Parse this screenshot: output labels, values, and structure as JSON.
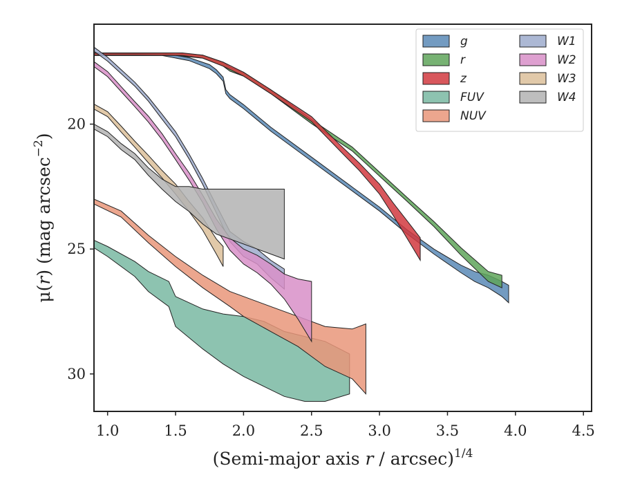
{
  "chart_data": {
    "type": "area",
    "xlabel_main": "(Semi-major axis ",
    "xlabel_var": "r",
    "xlabel_tail": " / arcsec)",
    "xlabel_sup": "1/4",
    "ylabel_main": "μ(",
    "ylabel_var": "r",
    "ylabel_tail": ") (mag arcsec",
    "ylabel_sup": "−2",
    "ylabel_end": ")",
    "xlim": [
      0.9,
      4.56
    ],
    "ylim": [
      31.5,
      16.0
    ],
    "y_inverted": true,
    "x_ticks": [
      1.0,
      1.5,
      2.0,
      2.5,
      3.0,
      3.5,
      4.0,
      4.5
    ],
    "x_tick_labels": [
      "1.0",
      "1.5",
      "2.0",
      "2.5",
      "3.0",
      "3.5",
      "4.0",
      "4.5"
    ],
    "y_ticks": [
      20,
      25,
      30
    ],
    "y_tick_labels": [
      "20",
      "25",
      "30"
    ],
    "grid": false,
    "legend_position": "top-right",
    "legend_columns": 2,
    "series": [
      {
        "name": "g",
        "color": "#5b8ab6",
        "noise": 0.0,
        "x": [
          0.9,
          1.2,
          1.4,
          1.6,
          1.75,
          1.8,
          1.85,
          1.87,
          1.9,
          2.0,
          2.2,
          2.5,
          2.8,
          3.0,
          3.2,
          3.4,
          3.6,
          3.7,
          3.8,
          3.9,
          3.95
        ],
        "y": [
          17.2,
          17.2,
          17.2,
          17.4,
          17.7,
          17.9,
          18.2,
          18.7,
          18.9,
          19.3,
          20.2,
          21.4,
          22.6,
          23.4,
          24.3,
          25.1,
          25.8,
          26.1,
          26.3,
          26.6,
          26.8
        ],
        "w": [
          0.05,
          0.05,
          0.05,
          0.06,
          0.08,
          0.08,
          0.08,
          0.08,
          0.08,
          0.08,
          0.08,
          0.08,
          0.08,
          0.08,
          0.08,
          0.1,
          0.15,
          0.2,
          0.25,
          0.3,
          0.35
        ]
      },
      {
        "name": "r",
        "color": "#5fa55a",
        "noise": 0.0,
        "x": [
          0.9,
          1.2,
          1.5,
          1.7,
          1.85,
          1.9,
          2.0,
          2.2,
          2.5,
          2.8,
          3.0,
          3.2,
          3.4,
          3.6,
          3.8,
          3.9
        ],
        "y": [
          17.2,
          17.2,
          17.2,
          17.3,
          17.6,
          17.8,
          18.0,
          18.7,
          19.9,
          21.0,
          22.0,
          23.0,
          24.0,
          25.1,
          26.1,
          26.3
        ],
        "w": [
          0.05,
          0.05,
          0.05,
          0.06,
          0.08,
          0.08,
          0.08,
          0.08,
          0.08,
          0.08,
          0.08,
          0.08,
          0.1,
          0.15,
          0.2,
          0.25
        ]
      },
      {
        "name": "z",
        "color": "#d1393f",
        "noise": 0.0,
        "x": [
          0.9,
          1.2,
          1.55,
          1.7,
          1.85,
          2.0,
          2.2,
          2.5,
          2.7,
          2.85,
          3.0,
          3.1,
          3.2,
          3.3
        ],
        "y": [
          17.2,
          17.2,
          17.2,
          17.3,
          17.6,
          18.0,
          18.7,
          19.8,
          20.9,
          21.7,
          22.6,
          23.4,
          24.2,
          25.0
        ],
        "w": [
          0.04,
          0.04,
          0.05,
          0.06,
          0.08,
          0.08,
          0.08,
          0.1,
          0.12,
          0.15,
          0.2,
          0.25,
          0.35,
          0.45
        ]
      },
      {
        "name": "FUV",
        "color": "#79b8a2",
        "noise": 0.0,
        "x": [
          0.9,
          1.0,
          1.2,
          1.3,
          1.45,
          1.5,
          1.7,
          1.85,
          2.0,
          2.15,
          2.3,
          2.45,
          2.6,
          2.78
        ],
        "y": [
          24.8,
          25.1,
          25.8,
          26.3,
          26.8,
          27.5,
          28.2,
          28.6,
          28.9,
          29.2,
          29.6,
          29.8,
          29.9,
          30.0
        ],
        "w": [
          0.15,
          0.2,
          0.3,
          0.4,
          0.5,
          0.6,
          0.8,
          1.0,
          1.2,
          1.3,
          1.3,
          1.3,
          1.2,
          0.8
        ]
      },
      {
        "name": "NUV",
        "color": "#e9977a",
        "noise": 0.0,
        "x": [
          0.9,
          1.1,
          1.3,
          1.5,
          1.7,
          1.9,
          2.0,
          2.2,
          2.4,
          2.6,
          2.8,
          2.9
        ],
        "y": [
          23.1,
          23.6,
          24.6,
          25.5,
          26.3,
          27.0,
          27.3,
          27.8,
          28.3,
          28.9,
          29.2,
          29.4
        ],
        "w": [
          0.1,
          0.12,
          0.15,
          0.2,
          0.25,
          0.3,
          0.4,
          0.5,
          0.6,
          0.8,
          1.0,
          1.4
        ]
      },
      {
        "name": "W1",
        "color": "#9dabcd",
        "noise": 0.0,
        "x": [
          0.9,
          1.0,
          1.1,
          1.2,
          1.3,
          1.4,
          1.5,
          1.6,
          1.7,
          1.8,
          1.9,
          2.0,
          2.1,
          2.2,
          2.3
        ],
        "y": [
          17.0,
          17.4,
          17.9,
          18.4,
          19.0,
          19.7,
          20.4,
          21.3,
          22.3,
          23.4,
          24.5,
          25.0,
          25.3,
          25.8,
          26.2
        ],
        "w": [
          0.08,
          0.08,
          0.08,
          0.08,
          0.08,
          0.1,
          0.1,
          0.1,
          0.12,
          0.15,
          0.2,
          0.3,
          0.3,
          0.35,
          0.4
        ]
      },
      {
        "name": "W2",
        "color": "#d88fc8",
        "noise": 0.0,
        "x": [
          0.9,
          1.0,
          1.1,
          1.2,
          1.3,
          1.4,
          1.5,
          1.6,
          1.7,
          1.8,
          1.9,
          2.0,
          2.1,
          2.2,
          2.3,
          2.4,
          2.5
        ],
        "y": [
          17.6,
          18.0,
          18.6,
          19.2,
          19.8,
          20.5,
          21.3,
          22.1,
          23.0,
          24.0,
          24.8,
          25.3,
          25.6,
          26.0,
          26.5,
          27.0,
          27.5
        ],
        "w": [
          0.1,
          0.1,
          0.1,
          0.1,
          0.12,
          0.12,
          0.12,
          0.15,
          0.15,
          0.2,
          0.25,
          0.3,
          0.35,
          0.4,
          0.5,
          0.8,
          1.2
        ]
      },
      {
        "name": "W3",
        "color": "#dcc09a",
        "noise": 0.0,
        "x": [
          0.9,
          1.0,
          1.1,
          1.2,
          1.3,
          1.4,
          1.5,
          1.6,
          1.7,
          1.8,
          1.85
        ],
        "y": [
          19.3,
          19.6,
          20.2,
          20.8,
          21.4,
          22.0,
          22.6,
          23.3,
          24.0,
          24.9,
          25.3
        ],
        "w": [
          0.1,
          0.1,
          0.12,
          0.12,
          0.15,
          0.15,
          0.2,
          0.2,
          0.25,
          0.3,
          0.4
        ]
      },
      {
        "name": "W4",
        "color": "#b3b3b3",
        "noise": 0.0,
        "x": [
          0.9,
          1.0,
          1.1,
          1.2,
          1.3,
          1.4,
          1.5,
          1.6,
          1.7,
          1.8,
          1.9,
          2.0,
          2.1,
          2.2,
          2.3
        ],
        "y": [
          20.1,
          20.4,
          20.9,
          21.3,
          21.9,
          22.4,
          22.8,
          23.0,
          23.3,
          23.5,
          23.6,
          23.7,
          23.8,
          23.9,
          24.0
        ],
        "w": [
          0.1,
          0.1,
          0.12,
          0.12,
          0.15,
          0.2,
          0.3,
          0.5,
          0.7,
          0.9,
          1.0,
          1.1,
          1.2,
          1.3,
          1.4
        ]
      }
    ]
  }
}
